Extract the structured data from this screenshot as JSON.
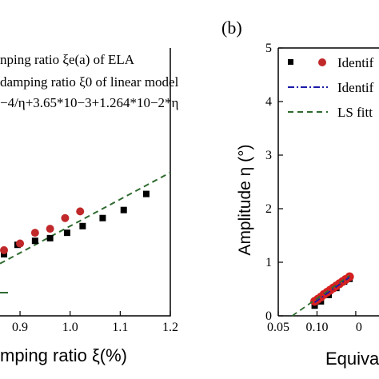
{
  "chart_data": [
    {
      "type": "scatter",
      "xlabel": "mping ratio ξ(%)",
      "xticks": [
        "0.9",
        "1.0",
        "1.1",
        "1.2"
      ],
      "xlim": [
        0.86,
        1.2
      ],
      "ylim": [
        0,
        1
      ],
      "legend": {
        "position": "top",
        "lines": [
          "nping ratio ξe(a) of ELA",
          "damping ratio ξ0 of linear model",
          "−4/η+3.65*10−3+1.264*10−2*η"
        ]
      },
      "series": [
        {
          "marker": "black-square",
          "color": "#000000",
          "points": [
            [
              0.868,
              0.23
            ],
            [
              0.895,
              0.265
            ],
            [
              0.93,
              0.28
            ],
            [
              0.96,
              0.29
            ],
            [
              0.994,
              0.31
            ],
            [
              1.025,
              0.335
            ],
            [
              1.065,
              0.365
            ],
            [
              1.107,
              0.395
            ],
            [
              1.152,
              0.455
            ]
          ]
        },
        {
          "marker": "red-circle",
          "color": "#c0282a",
          "points": [
            [
              0.868,
              0.245
            ],
            [
              0.9,
              0.27
            ],
            [
              0.93,
              0.31
            ],
            [
              0.96,
              0.325
            ],
            [
              0.99,
              0.365
            ],
            [
              1.02,
              0.39
            ]
          ]
        },
        {
          "line": "dashed",
          "color": "#2f6b2f",
          "points": [
            [
              0.86,
              0.195
            ],
            [
              1.2,
              0.535
            ]
          ]
        }
      ]
    },
    {
      "type": "scatter",
      "panel_label": "(b)",
      "ylabel": "Amplitude η (°)",
      "xlabel": "Equiva",
      "xticks": [
        "0.05",
        "0.10",
        "0"
      ],
      "yticks": [
        "0",
        "1",
        "2",
        "3",
        "4",
        "5"
      ],
      "xlim": [
        0.05,
        0.18
      ],
      "ylim": [
        0,
        5
      ],
      "legend": {
        "position": "top-right",
        "entries": [
          "Identif",
          "Identif",
          "LS fitt"
        ]
      },
      "series": [
        {
          "marker": "black-square",
          "color": "#000000",
          "points": [
            [
              0.097,
              0.22
            ],
            [
              0.105,
              0.3
            ],
            [
              0.115,
              0.42
            ],
            [
              0.125,
              0.55
            ],
            [
              0.135,
              0.67
            ],
            [
              0.142,
              0.72
            ]
          ]
        },
        {
          "marker": "red-circle",
          "color": "#d42020",
          "points": [
            [
              0.097,
              0.27
            ],
            [
              0.101,
              0.31
            ],
            [
              0.105,
              0.35
            ],
            [
              0.109,
              0.4
            ],
            [
              0.113,
              0.44
            ],
            [
              0.117,
              0.48
            ],
            [
              0.121,
              0.52
            ],
            [
              0.125,
              0.56
            ],
            [
              0.129,
              0.6
            ],
            [
              0.133,
              0.64
            ],
            [
              0.137,
              0.68
            ],
            [
              0.142,
              0.73
            ]
          ]
        },
        {
          "line": "dashdot",
          "color": "#1a1aa8",
          "points": [
            [
              0.097,
              0.25
            ],
            [
              0.142,
              0.72
            ]
          ]
        },
        {
          "line": "dashed",
          "color": "#2f6b2f",
          "points": [
            [
              0.068,
              0.0
            ],
            [
              0.142,
              0.75
            ]
          ]
        }
      ]
    }
  ]
}
